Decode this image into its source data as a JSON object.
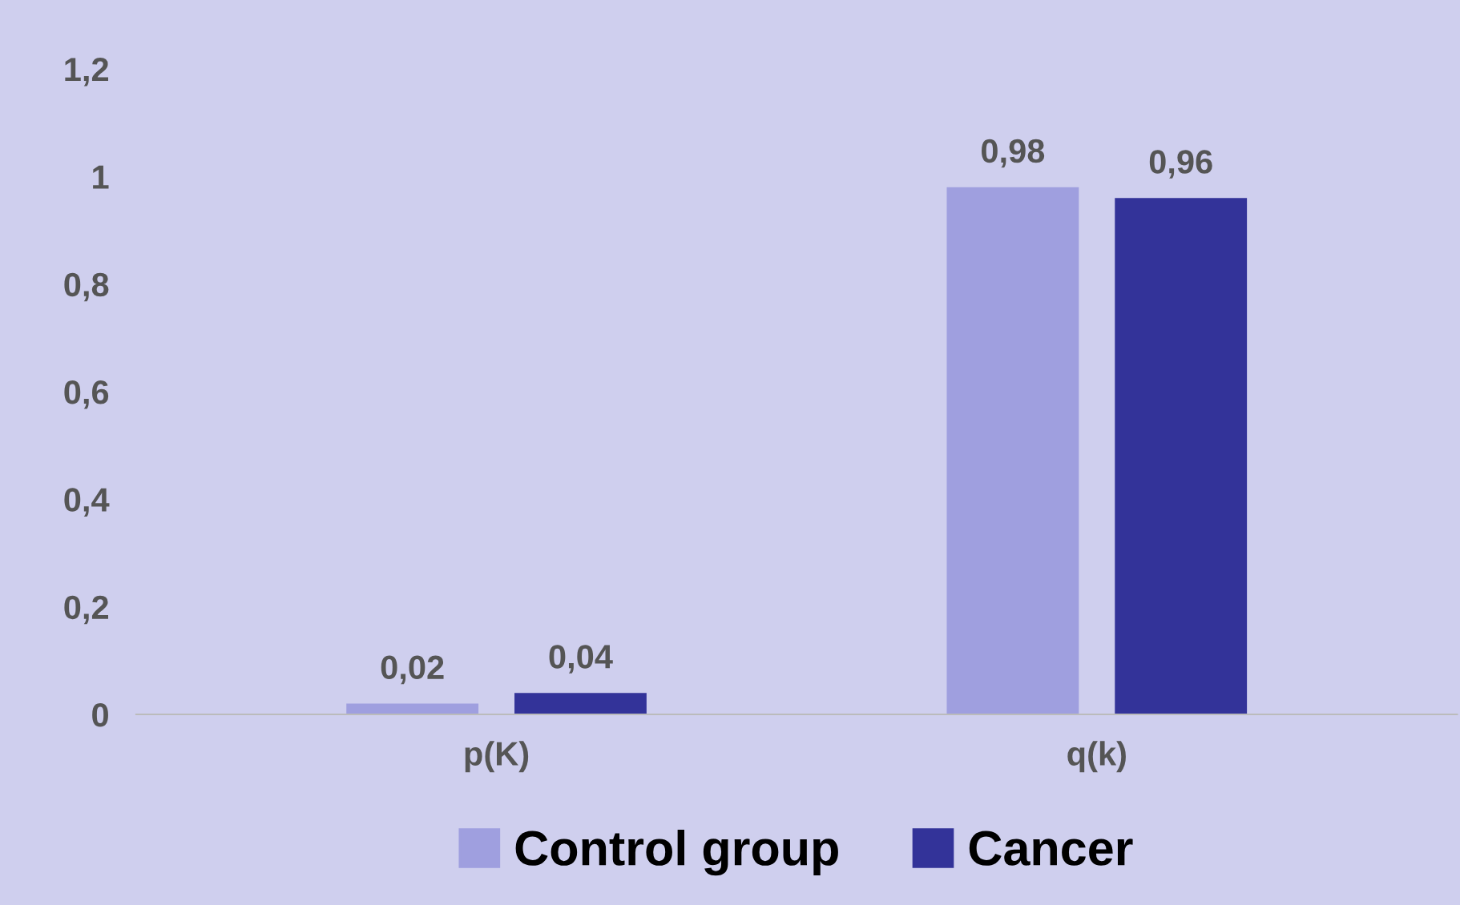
{
  "chart_data": {
    "type": "bar",
    "categories": [
      "p(K)",
      "q(k)"
    ],
    "series": [
      {
        "name": "Control group",
        "color": "#9f9fdf",
        "values": [
          0.02,
          0.98
        ]
      },
      {
        "name": "Cancer",
        "color": "#333399",
        "values": [
          0.04,
          0.96
        ]
      }
    ],
    "ylim": [
      0,
      1.2
    ],
    "yticks": [
      {
        "value": 0,
        "label": "0"
      },
      {
        "value": 0.2,
        "label": "0,2"
      },
      {
        "value": 0.4,
        "label": "0,4"
      },
      {
        "value": 0.6,
        "label": "0,6"
      },
      {
        "value": 0.8,
        "label": "0,8"
      },
      {
        "value": 1,
        "label": "1"
      },
      {
        "value": 1.2,
        "label": "1,2"
      }
    ],
    "value_labels": [
      [
        "0,02",
        "0,98"
      ],
      [
        "0,04",
        "0,96"
      ]
    ],
    "grid": false,
    "legend": "bottom"
  }
}
